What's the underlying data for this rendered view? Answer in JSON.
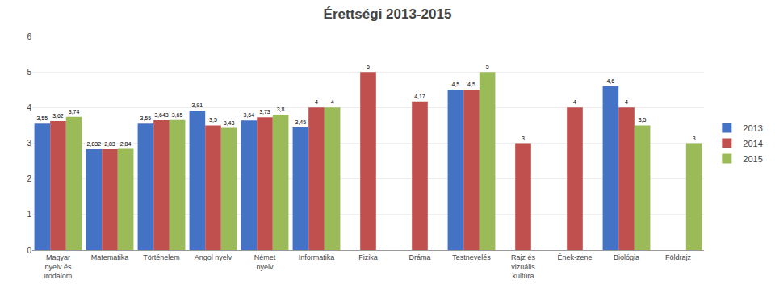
{
  "chart_data": {
    "type": "bar",
    "title": "Érettségi 2013-2015",
    "categories": [
      "Magyar\nnyelv és\nirodalom",
      "Matematika",
      "Történelem",
      "Angol nyelv",
      "Német\nnyelv",
      "Informatika",
      "Fizika",
      "Dráma",
      "Testnevelés",
      "Rajz és\nvizuális\nkultúra",
      "Ének-zene",
      "Biológia",
      "Földrajz"
    ],
    "series": [
      {
        "name": "2013",
        "color": "#4472C4",
        "values": [
          3.55,
          2.832,
          3.55,
          3.91,
          3.64,
          3.45,
          null,
          null,
          4.5,
          null,
          null,
          4.6,
          null
        ],
        "value_labels": [
          "3,55",
          "2,832",
          "3,55",
          "3,91",
          "3,64",
          "3,45",
          null,
          null,
          "4,5",
          null,
          null,
          "4,6",
          null
        ]
      },
      {
        "name": "2014",
        "color": "#C0504D",
        "values": [
          3.62,
          2.83,
          3.643,
          3.5,
          3.73,
          4.0,
          5.0,
          4.17,
          4.5,
          3.0,
          4.0,
          4.0,
          null
        ],
        "value_labels": [
          "3,62",
          "2,83",
          "3,643",
          "3,5",
          "3,73",
          "4",
          "5",
          "4,17",
          "4,5",
          "3",
          "4",
          "4",
          null
        ]
      },
      {
        "name": "2015",
        "color": "#9BBB59",
        "values": [
          3.74,
          2.84,
          3.65,
          3.43,
          3.8,
          4.0,
          null,
          null,
          5.0,
          null,
          null,
          3.5,
          3.0
        ],
        "value_labels": [
          "3,74",
          "2,84",
          "3,65",
          "3,43",
          "3,8",
          "4",
          null,
          null,
          "5",
          null,
          null,
          "3,5",
          "3"
        ]
      }
    ],
    "ylim": [
      0,
      6
    ],
    "yticks": [
      0,
      1,
      2,
      3,
      4,
      5,
      6
    ],
    "grid": true,
    "legend": "right",
    "data_labels": true
  }
}
